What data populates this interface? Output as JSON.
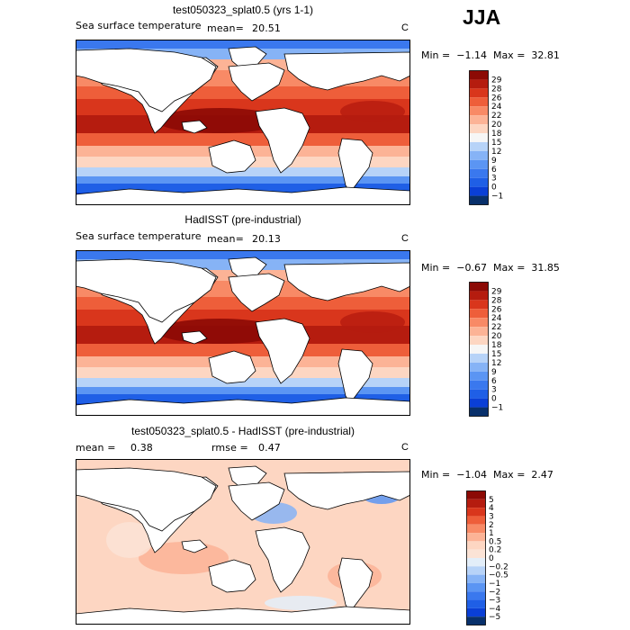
{
  "season": "JJA",
  "panels": [
    {
      "title": "test050323_splat0.5 (yrs 1-1)",
      "variable": "Sea surface temperature",
      "stat1_label": "mean=",
      "stat1_value": "20.51",
      "unit": "C",
      "min_label": "Min =",
      "min_value": "−1.14",
      "max_label": "Max =",
      "max_value": "32.81",
      "colorbar_ticks": [
        "29",
        "28",
        "26",
        "24",
        "22",
        "20",
        "18",
        "15",
        "12",
        "9",
        "6",
        "3",
        "0",
        "−1"
      ]
    },
    {
      "title": "HadISST (pre-industrial)",
      "variable": "Sea surface temperature",
      "stat1_label": "mean=",
      "stat1_value": "20.13",
      "unit": "C",
      "min_label": "Min =",
      "min_value": "−0.67",
      "max_label": "Max =",
      "max_value": "31.85",
      "colorbar_ticks": [
        "29",
        "28",
        "26",
        "24",
        "22",
        "20",
        "18",
        "15",
        "12",
        "9",
        "6",
        "3",
        "0",
        "−1"
      ]
    },
    {
      "title": "test050323_splat0.5 - HadISST (pre-industrial)",
      "stat1_label": "mean =",
      "stat1_value": "0.38",
      "stat2_label": "rmse =",
      "stat2_value": "0.47",
      "unit": "C",
      "min_label": "Min =",
      "min_value": "−1.04",
      "max_label": "Max =",
      "max_value": "2.47",
      "colorbar_ticks": [
        "5",
        "4",
        "3",
        "2",
        "1",
        "0.5",
        "0.2",
        "0",
        "−0.2",
        "−0.5",
        "−1",
        "−2",
        "−3",
        "−4",
        "−5"
      ]
    }
  ],
  "chart_data": [
    {
      "type": "heatmap",
      "title": "test050323_splat0.5 (yrs 1-1)",
      "variable": "Sea surface temperature",
      "units": "C",
      "mean": 20.51,
      "min": -1.14,
      "max": 32.81,
      "levels": [
        -1,
        0,
        3,
        6,
        9,
        12,
        15,
        18,
        20,
        22,
        24,
        26,
        28,
        29
      ],
      "colors": [
        "#08306b",
        "#0a3fd6",
        "#1f5fe6",
        "#3a78ee",
        "#5b95f3",
        "#86b3f6",
        "#b7d3f8",
        "#f6f6f6",
        "#fdd6c2",
        "#fcb396",
        "#f88a66",
        "#ee5e3a",
        "#d9361c",
        "#b51c0f",
        "#8c0a05"
      ]
    },
    {
      "type": "heatmap",
      "title": "HadISST (pre-industrial)",
      "variable": "Sea surface temperature",
      "units": "C",
      "mean": 20.13,
      "min": -0.67,
      "max": 31.85,
      "levels": [
        -1,
        0,
        3,
        6,
        9,
        12,
        15,
        18,
        20,
        22,
        24,
        26,
        28,
        29
      ],
      "colors": [
        "#08306b",
        "#0a3fd6",
        "#1f5fe6",
        "#3a78ee",
        "#5b95f3",
        "#86b3f6",
        "#b7d3f8",
        "#f6f6f6",
        "#fdd6c2",
        "#fcb396",
        "#f88a66",
        "#ee5e3a",
        "#d9361c",
        "#b51c0f",
        "#8c0a05"
      ]
    },
    {
      "type": "heatmap",
      "title": "test050323_splat0.5 - HadISST (pre-industrial)",
      "units": "C",
      "mean": 0.38,
      "rmse": 0.47,
      "min": -1.04,
      "max": 2.47,
      "levels": [
        -5,
        -4,
        -3,
        -2,
        -1,
        -0.5,
        -0.2,
        0,
        0.2,
        0.5,
        1,
        2,
        3,
        4,
        5
      ],
      "colors": [
        "#08306b",
        "#0a3fd6",
        "#1f5fe6",
        "#3a78ee",
        "#5b95f3",
        "#86b3f6",
        "#b7d3f8",
        "#e3eef9",
        "#fbe3d6",
        "#fdd6c2",
        "#fcb396",
        "#f88a66",
        "#ee5e3a",
        "#d9361c",
        "#b51c0f",
        "#8c0a05"
      ]
    }
  ]
}
